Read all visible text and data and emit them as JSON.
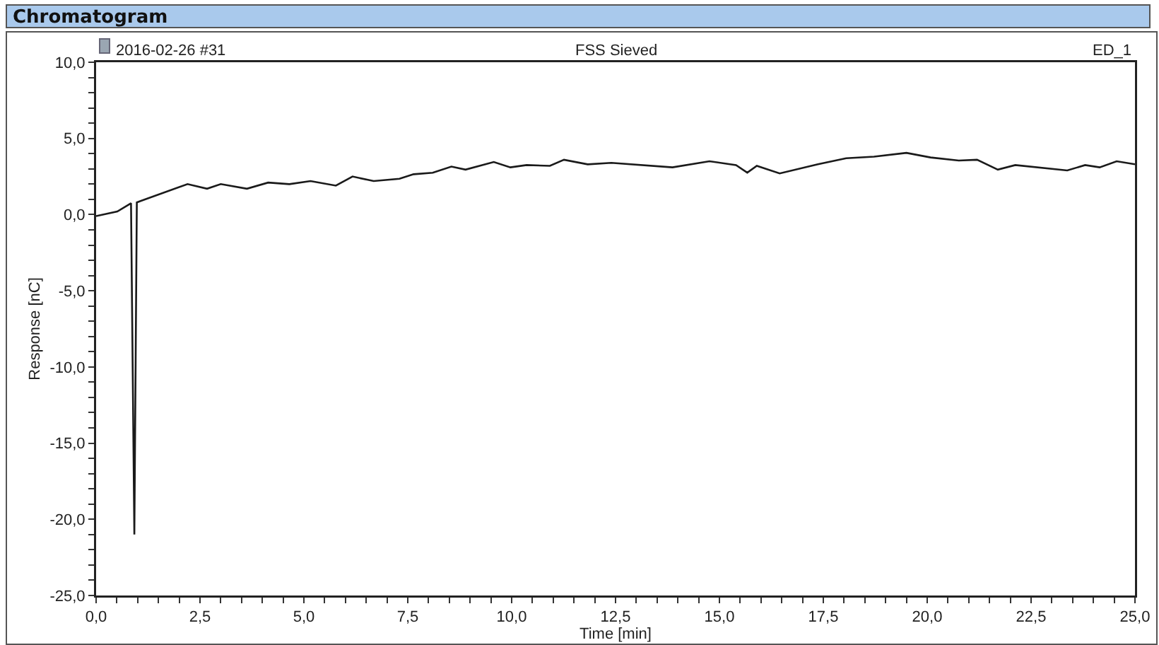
{
  "chart_data": {
    "type": "line",
    "title": "Chromatogram",
    "xlabel": "Time [min]",
    "ylabel": "Response [nC]",
    "annotations": [
      "2016-02-26 #31",
      "FSS Sieved",
      "ED_1"
    ],
    "series": [
      {
        "color": "#1a1a1a",
        "x": [
          0,
          0.51,
          0.84,
          0.92,
          0.98,
          1.08,
          2.2,
          2.67,
          3.0,
          3.63,
          4.14,
          4.65,
          5.16,
          5.77,
          6.17,
          6.68,
          7.3,
          7.64,
          8.1,
          8.55,
          8.89,
          9.57,
          9.97,
          10.36,
          10.92,
          11.26,
          11.83,
          12.4,
          13.87,
          14.76,
          15.4,
          15.67,
          15.9,
          16.45,
          17.37,
          18.05,
          18.72,
          19.5,
          20.08,
          20.76,
          21.2,
          21.7,
          22.12,
          23.37,
          23.8,
          24.15,
          24.56,
          25
        ],
        "values": [
          -0.1,
          0.2,
          0.75,
          -21.0,
          0.8,
          0.9,
          2.0,
          1.7,
          2.0,
          1.7,
          2.1,
          2.0,
          2.2,
          1.9,
          2.5,
          2.2,
          2.35,
          2.65,
          2.75,
          3.15,
          2.95,
          3.45,
          3.1,
          3.25,
          3.2,
          3.6,
          3.3,
          3.4,
          3.1,
          3.5,
          3.25,
          2.75,
          3.2,
          2.7,
          3.3,
          3.7,
          3.8,
          4.05,
          3.75,
          3.55,
          3.6,
          2.95,
          3.25,
          2.9,
          3.25,
          3.1,
          3.5,
          3.3
        ]
      }
    ],
    "xlim": [
      0,
      25
    ],
    "ylim": [
      -25,
      10
    ],
    "xticks": [
      {
        "value": 0,
        "label": "0,0"
      },
      {
        "value": 0.5,
        "label": null
      },
      {
        "value": 1,
        "label": null
      },
      {
        "value": 1.5,
        "label": null
      },
      {
        "value": 2,
        "label": null
      },
      {
        "value": 2.5,
        "label": "2,5"
      },
      {
        "value": 3,
        "label": null
      },
      {
        "value": 3.5,
        "label": null
      },
      {
        "value": 4,
        "label": null
      },
      {
        "value": 4.5,
        "label": null
      },
      {
        "value": 5,
        "label": "5,0"
      },
      {
        "value": 5.5,
        "label": null
      },
      {
        "value": 6,
        "label": null
      },
      {
        "value": 6.5,
        "label": null
      },
      {
        "value": 7,
        "label": null
      },
      {
        "value": 7.5,
        "label": "7,5"
      },
      {
        "value": 8,
        "label": null
      },
      {
        "value": 8.5,
        "label": null
      },
      {
        "value": 9,
        "label": null
      },
      {
        "value": 9.5,
        "label": null
      },
      {
        "value": 10,
        "label": "10,0"
      },
      {
        "value": 10.5,
        "label": null
      },
      {
        "value": 11,
        "label": null
      },
      {
        "value": 11.5,
        "label": null
      },
      {
        "value": 12,
        "label": null
      },
      {
        "value": 12.5,
        "label": "12,5"
      },
      {
        "value": 13,
        "label": null
      },
      {
        "value": 13.5,
        "label": null
      },
      {
        "value": 14,
        "label": null
      },
      {
        "value": 14.5,
        "label": null
      },
      {
        "value": 15,
        "label": "15,0"
      },
      {
        "value": 15.5,
        "label": null
      },
      {
        "value": 16,
        "label": null
      },
      {
        "value": 16.5,
        "label": null
      },
      {
        "value": 17,
        "label": null
      },
      {
        "value": 17.5,
        "label": "17,5"
      },
      {
        "value": 18,
        "label": null
      },
      {
        "value": 18.5,
        "label": null
      },
      {
        "value": 19,
        "label": null
      },
      {
        "value": 19.5,
        "label": null
      },
      {
        "value": 20,
        "label": "20,0"
      },
      {
        "value": 20.5,
        "label": null
      },
      {
        "value": 21,
        "label": null
      },
      {
        "value": 21.5,
        "label": null
      },
      {
        "value": 22,
        "label": null
      },
      {
        "value": 22.5,
        "label": "22,5"
      },
      {
        "value": 23,
        "label": null
      },
      {
        "value": 23.5,
        "label": null
      },
      {
        "value": 24,
        "label": null
      },
      {
        "value": 24.5,
        "label": null
      },
      {
        "value": 25,
        "label": "25,0"
      }
    ],
    "yticks": [
      {
        "value": -25,
        "label": "-25,0"
      },
      {
        "value": -24,
        "label": null
      },
      {
        "value": -23,
        "label": null
      },
      {
        "value": -22,
        "label": null
      },
      {
        "value": -21,
        "label": null
      },
      {
        "value": -20,
        "label": "-20,0"
      },
      {
        "value": -19,
        "label": null
      },
      {
        "value": -18,
        "label": null
      },
      {
        "value": -17,
        "label": null
      },
      {
        "value": -16,
        "label": null
      },
      {
        "value": -15,
        "label": "-15,0"
      },
      {
        "value": -14,
        "label": null
      },
      {
        "value": -13,
        "label": null
      },
      {
        "value": -12,
        "label": null
      },
      {
        "value": -11,
        "label": null
      },
      {
        "value": -10,
        "label": "-10,0"
      },
      {
        "value": -9,
        "label": null
      },
      {
        "value": -8,
        "label": null
      },
      {
        "value": -7,
        "label": null
      },
      {
        "value": -6,
        "label": null
      },
      {
        "value": -5,
        "label": "-5,0"
      },
      {
        "value": -4,
        "label": null
      },
      {
        "value": -3,
        "label": null
      },
      {
        "value": -2,
        "label": null
      },
      {
        "value": -1,
        "label": null
      },
      {
        "value": 0,
        "label": "0,0"
      },
      {
        "value": 1,
        "label": null
      },
      {
        "value": 2,
        "label": null
      },
      {
        "value": 3,
        "label": null
      },
      {
        "value": 4,
        "label": null
      },
      {
        "value": 5,
        "label": "5,0"
      },
      {
        "value": 6,
        "label": null
      },
      {
        "value": 7,
        "label": null
      },
      {
        "value": 8,
        "label": null
      },
      {
        "value": 9,
        "label": null
      },
      {
        "value": 10,
        "label": "10,0"
      }
    ],
    "grid": false,
    "marker": "none",
    "line_style": "solid"
  }
}
